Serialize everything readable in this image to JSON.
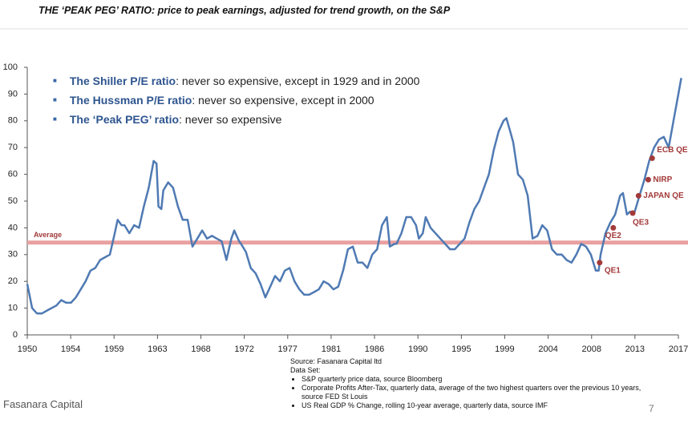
{
  "title": "THE ‘PEAK PEG’ RATIO: price to peak earnings, adjusted for trend growth, on the S&P",
  "bullets": [
    {
      "bold": "The Shiller P/E ratio",
      "text": ": never so expensive, except in 1929 and in 2000"
    },
    {
      "bold": "The Hussman P/E ratio",
      "text": ": never so expensive, except in 2000"
    },
    {
      "bold": "The ‘Peak PEG’ ratio",
      "text": ": never so expensive"
    }
  ],
  "source": {
    "heading": "Source: Fasanara Capital ltd",
    "subheading": "Data Set:",
    "items": [
      "S&P quarterly price data, source Bloomberg",
      "Corporate Profits After-Tax, quarterly data, average of the two highest quarters over the previous 10 years, source FED St Louis",
      "US Real GDP % Change, rolling 10-year average, quarterly data, source IMF"
    ]
  },
  "footer": {
    "company": "Fasanara Capital",
    "page": "7"
  },
  "chart_data": {
    "type": "line",
    "series": [
      {
        "color": "#4f7ab3",
        "x": [
          1950,
          1950.5,
          1951,
          1951.5,
          1952,
          1953,
          1953.5,
          1954,
          1954.5,
          1955,
          1956,
          1956.5,
          1957,
          1957.5,
          1958,
          1958.5,
          1959,
          1959.3,
          1959.7,
          1960,
          1960.5,
          1961,
          1961.5,
          1962,
          1962.5,
          1963,
          1963.3,
          1963.5,
          1963.8,
          1964,
          1964.5,
          1965,
          1965.5,
          1966,
          1966.5,
          1967,
          1967.5,
          1968,
          1968.5,
          1969,
          1969.5,
          1970,
          1970.5,
          1971,
          1971.3,
          1971.8,
          1972,
          1972.5,
          1973,
          1973.5,
          1974,
          1974.5,
          1975,
          1975.5,
          1976,
          1976.5,
          1977,
          1977.5,
          1978,
          1978.5,
          1979,
          1979.5,
          1980,
          1980.5,
          1981,
          1981.5,
          1982,
          1982.5,
          1983,
          1983.5,
          1984,
          1984.5,
          1985,
          1985.5,
          1986,
          1986.5,
          1987,
          1987.3,
          1987.8,
          1988,
          1988.5,
          1989,
          1989.5,
          1990,
          1990.3,
          1990.7,
          1991,
          1991.5,
          1992,
          1992.5,
          1993,
          1993.5,
          1994,
          1994.5,
          1995,
          1995.5,
          1996,
          1996.5,
          1997,
          1997.5,
          1998,
          1998.5,
          1999,
          1999.3,
          1999.7,
          2000,
          2000.5,
          2001,
          2001.5,
          2002,
          2002.5,
          2003,
          2003.5,
          2004,
          2004.5,
          2005,
          2005.5,
          2006,
          2006.5,
          2007,
          2007.5,
          2008,
          2008.5,
          2008.8,
          2009,
          2009.5,
          2010,
          2010.5,
          2011,
          2011.3,
          2011.7,
          2012,
          2012.5,
          2013,
          2013.5,
          2014,
          2014.5,
          2015,
          2015.5,
          2016,
          2016.5,
          2017,
          2017.3
        ],
        "values": [
          19,
          10,
          8,
          8,
          9,
          11,
          13,
          12,
          12,
          14,
          20,
          24,
          25,
          28,
          29,
          30,
          38,
          43,
          41,
          41,
          38,
          41,
          40,
          48,
          55,
          65,
          64,
          48,
          47,
          54,
          57,
          55,
          48,
          43,
          43,
          33,
          36,
          39,
          36,
          37,
          36,
          35,
          28,
          36,
          39,
          35,
          34,
          31,
          25,
          23,
          19,
          14,
          18,
          22,
          20,
          24,
          25,
          20,
          17,
          15,
          15,
          16,
          17,
          20,
          19,
          17,
          18,
          24,
          32,
          33,
          27,
          27,
          25,
          30,
          32,
          41,
          44,
          33,
          34,
          34,
          38,
          44,
          44,
          41,
          36,
          38,
          44,
          40,
          38,
          36,
          34,
          32,
          32,
          34,
          36,
          42,
          47,
          50,
          55,
          60,
          69,
          76,
          80,
          81,
          76,
          72,
          60,
          58,
          52,
          36,
          37,
          41,
          39,
          32,
          30,
          30,
          28,
          27,
          30,
          34,
          33,
          30,
          24,
          24,
          30,
          38,
          42,
          45,
          52,
          53,
          45,
          46,
          46,
          52,
          58,
          65,
          70,
          73,
          74,
          70,
          80,
          90,
          96
        ]
      }
    ],
    "xlim": [
      1950,
      2017
    ],
    "xticks": [
      {
        "value": 1950,
        "label": "1950"
      },
      {
        "value": 1954.47,
        "label": "1954"
      },
      {
        "value": 1958.93,
        "label": "1959"
      },
      {
        "value": 1963.4,
        "label": "1963"
      },
      {
        "value": 1967.87,
        "label": "1968"
      },
      {
        "value": 1972.33,
        "label": "1972"
      },
      {
        "value": 1976.8,
        "label": "1977"
      },
      {
        "value": 1981.27,
        "label": "1981"
      },
      {
        "value": 1985.73,
        "label": "1986"
      },
      {
        "value": 1990.2,
        "label": "1990"
      },
      {
        "value": 1994.67,
        "label": "1995"
      },
      {
        "value": 1999.13,
        "label": "1999"
      },
      {
        "value": 2003.6,
        "label": "2004"
      },
      {
        "value": 2008.07,
        "label": "2008"
      },
      {
        "value": 2012.53,
        "label": "2013"
      },
      {
        "value": 2017,
        "label": "2017"
      }
    ],
    "ylim": [
      0,
      100
    ],
    "yticks": [
      0,
      10,
      20,
      30,
      40,
      50,
      60,
      70,
      80,
      90,
      100
    ],
    "average": {
      "label": "Average",
      "value": 34.5,
      "color": "#e8a0a0"
    },
    "annotations": [
      {
        "label": "QE1",
        "x": 2008.9,
        "y": 27
      },
      {
        "label": "QE2",
        "x": 2010.3,
        "y": 40
      },
      {
        "label": "QE3",
        "x": 2012.3,
        "y": 45.5
      },
      {
        "label": "JAPAN QE",
        "x": 2012.9,
        "y": 52
      },
      {
        "label": "NIRP",
        "x": 2013.9,
        "y": 58
      },
      {
        "label": "ECB QE",
        "x": 2014.3,
        "y": 66
      }
    ],
    "annotation_color": "#a33a3a"
  }
}
